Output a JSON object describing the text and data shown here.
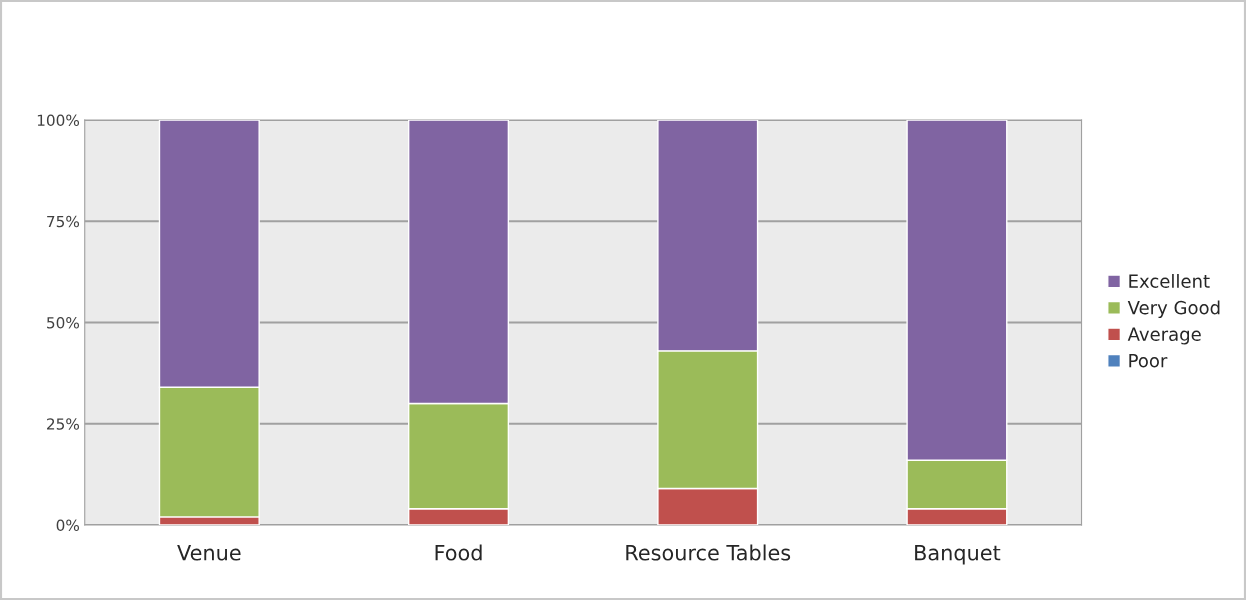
{
  "chart_data": {
    "type": "bar",
    "stacked": true,
    "categories": [
      "Venue",
      "Food",
      "Resource Tables",
      "Banquet"
    ],
    "series": [
      {
        "name": "Poor",
        "color": "#4f81bd",
        "values": [
          0,
          0,
          0,
          0
        ]
      },
      {
        "name": "Average",
        "color": "#c0504d",
        "values": [
          2,
          4,
          9,
          4
        ]
      },
      {
        "name": "Very Good",
        "color": "#9bbb59",
        "values": [
          32,
          26,
          34,
          12
        ]
      },
      {
        "name": "Excellent",
        "color": "#8064a2",
        "values": [
          66,
          70,
          57,
          84
        ]
      }
    ],
    "ylim": [
      0,
      100
    ],
    "yticks": [
      {
        "value": 0,
        "label": "0%"
      },
      {
        "value": 25,
        "label": "25%"
      },
      {
        "value": 50,
        "label": "50%"
      },
      {
        "value": 75,
        "label": "75%"
      },
      {
        "value": 100,
        "label": "100%"
      }
    ],
    "grid": "y",
    "legend": "right"
  }
}
